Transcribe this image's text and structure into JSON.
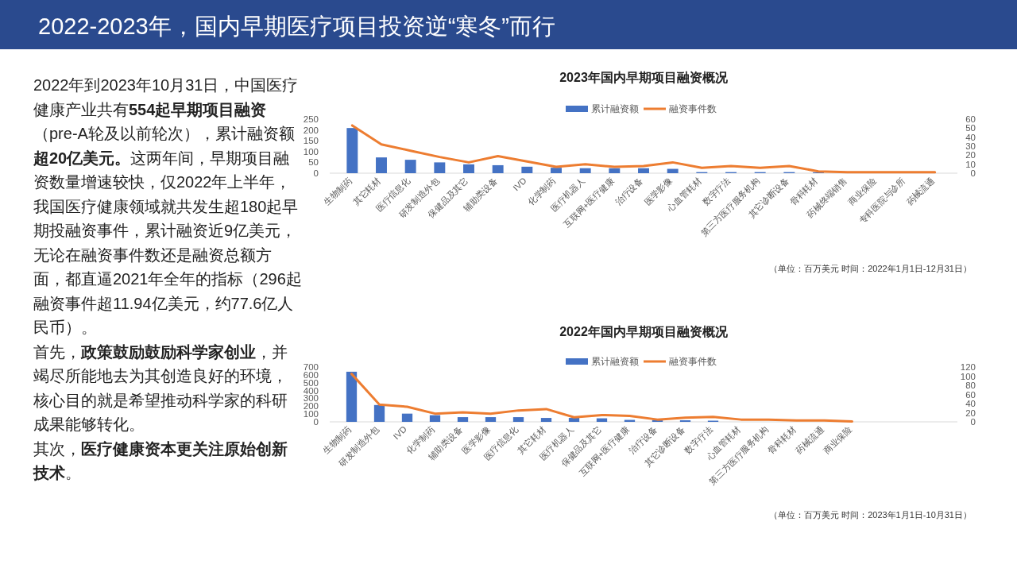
{
  "chart_data": [
    {
      "type": "other",
      "title": "2022-2023年，国内早期医疗项目投资逆“寒冬”而行",
      "annotations": [
        "2022年到2023年10月31日，中国医疗健康产业共有**554起早期项目融资**（pre-A轮及以前轮次），累计融资额**超20亿美元。**这两年间，早期项目融资数量增速较快，仅2022年上半年，我国医疗健康领域就共发生超180起早期投融资事件，累计融资近9亿美元，无论在融资事件数还是融资总额方面，都直逼2021年全年的指标（296起融资事件超11.94亿美元，约77.6亿人民币）。",
        "首先，**政策鼓励鼓励科学家创业**，并竭尽所能地去为其创造良好的环境，核心目的就是希望推动科学家的科研成果能够转化。",
        "其次，**医疗健康资本更关注原始创新技术**。"
      ]
    },
    {
      "type": "bar",
      "title": "2023年国内早期项目融资概况",
      "legend": "top",
      "categories": [
        "生物制药",
        "其它耗材",
        "医疗信息化",
        "研发制造外包",
        "保健品及其它",
        "辅助类设备",
        "IVD",
        "化学制药",
        "医疗机器人",
        "互联网+医疗健康",
        "治疗设备",
        "医学影像",
        "心血管耗材",
        "数字疗法",
        "第三方医疗服务机构",
        "其它诊断设备",
        "骨科耗材",
        "药械终端销售",
        "商业保险",
        "专科医院与诊所",
        "药械流通"
      ],
      "series": [
        {
          "name": "累计融资额",
          "type": "bar",
          "color": "#4472c4",
          "values": [
            209,
            73,
            62,
            50,
            41,
            37,
            30,
            25,
            23,
            23,
            23,
            20,
            5,
            5,
            5,
            5,
            4,
            0,
            0,
            0,
            0
          ]
        },
        {
          "name": "融资事件数",
          "type": "line",
          "axis": "y2",
          "color": "#ed7d31",
          "values": [
            53,
            32,
            25,
            18,
            12,
            19,
            13,
            7,
            10,
            7,
            8,
            12,
            6,
            8,
            6,
            8,
            2,
            1,
            1,
            1,
            1
          ]
        }
      ],
      "ylim": [
        0,
        250
      ],
      "yticks": [
        0,
        50,
        100,
        150,
        200,
        250
      ],
      "y2lim": [
        0,
        60
      ],
      "y2ticks": [
        0,
        10,
        20,
        30,
        40,
        50,
        60
      ],
      "annotations": [
        "（单位：百万美元 时间：2022年1月1日-12月31日）"
      ]
    },
    {
      "type": "bar",
      "title": "2022年国内早期项目融资概况",
      "legend": "top",
      "categories": [
        "生物制药",
        "研发制造外包",
        "IVD",
        "化学制药",
        "辅助类设备",
        "医学影像",
        "医疗信息化",
        "其它耗材",
        "医疗机器人",
        "保健品及其它",
        "互联网+医疗健康",
        "治疗设备",
        "其它诊断设备",
        "数字疗法",
        "心血管耗材",
        "第三方医疗服务机构",
        "骨科耗材",
        "药械流通",
        "商业保险",
        null,
        null,
        null
      ],
      "series": [
        {
          "name": "累计融资额",
          "type": "bar",
          "color": "#4472c4",
          "values": [
            640,
            215,
            105,
            85,
            60,
            60,
            60,
            50,
            50,
            45,
            25,
            25,
            20,
            15,
            0,
            0,
            0,
            0,
            0,
            null,
            null,
            null
          ]
        },
        {
          "name": "融资事件数",
          "type": "line",
          "axis": "y2",
          "color": "#ed7d31",
          "values": [
            105,
            38,
            33,
            18,
            21,
            18,
            25,
            28,
            10,
            15,
            13,
            5,
            9,
            11,
            5,
            5,
            3,
            3,
            1,
            null,
            null,
            null
          ]
        }
      ],
      "ylim": [
        0,
        700
      ],
      "yticks": [
        0,
        100,
        200,
        300,
        400,
        500,
        600,
        700
      ],
      "y2lim": [
        0,
        120
      ],
      "y2ticks": [
        0,
        20,
        40,
        60,
        80,
        100,
        120
      ],
      "annotations": [
        "（单位：百万美元 时间：2023年1月1日-10月31日）"
      ]
    }
  ]
}
